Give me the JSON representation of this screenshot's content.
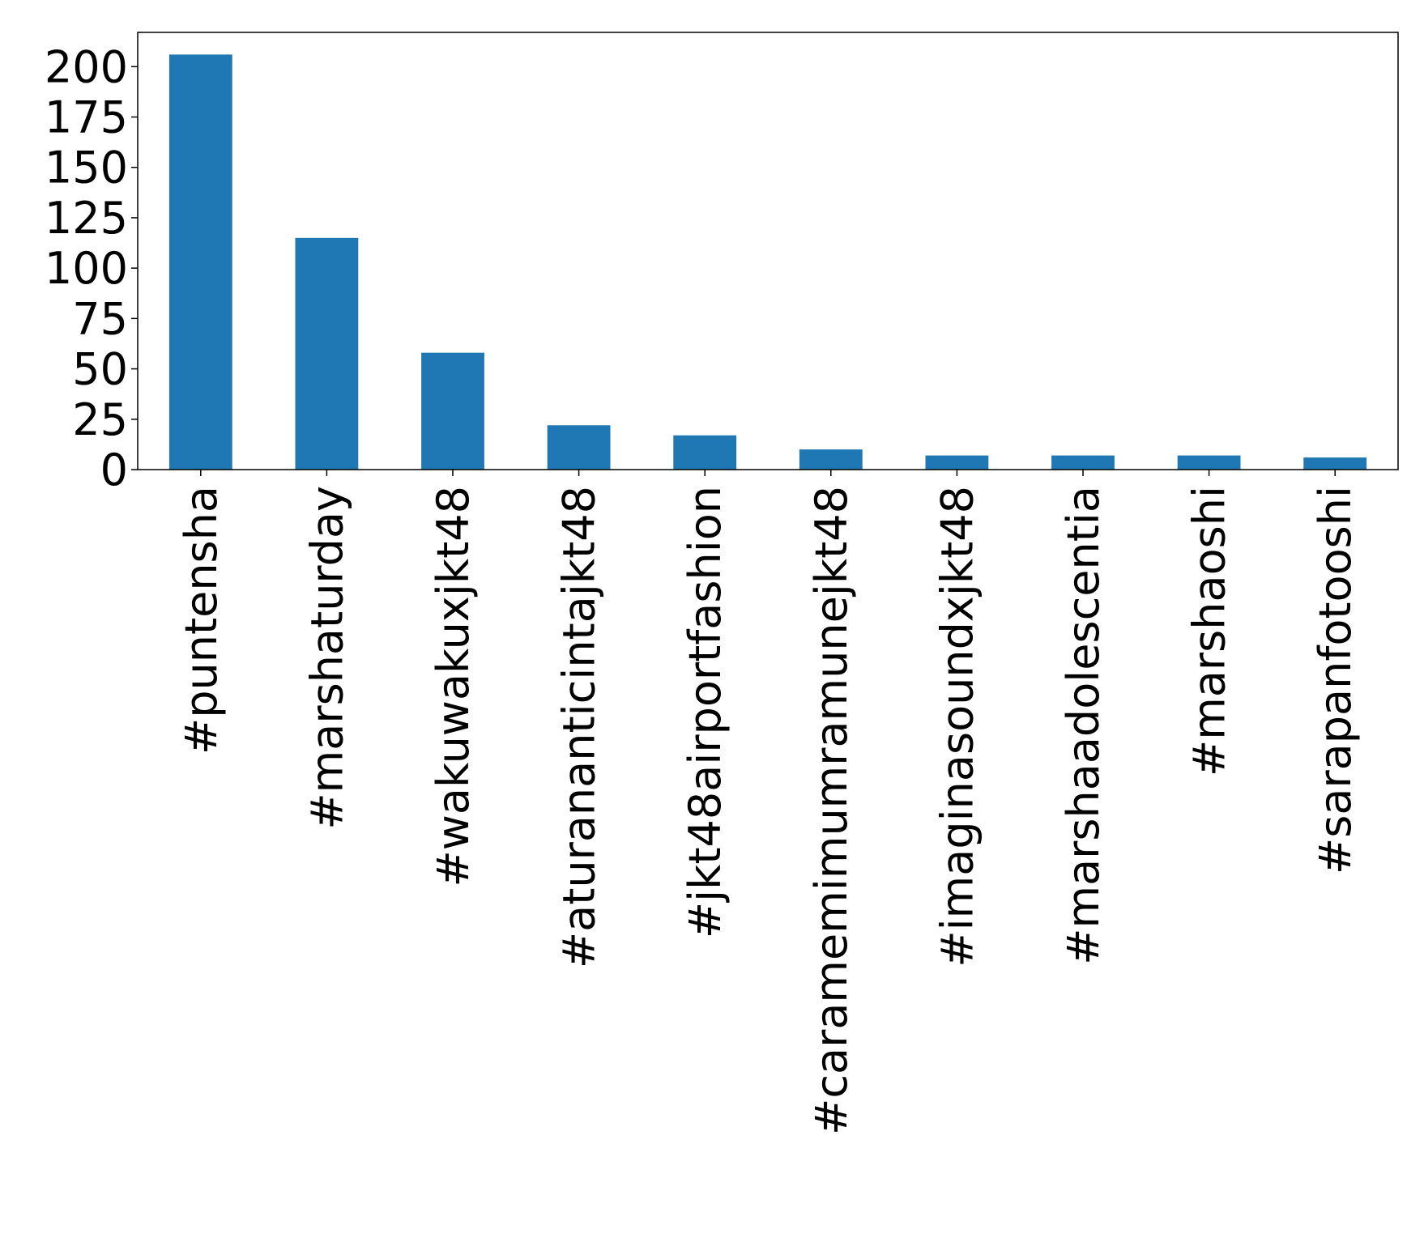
{
  "chart_data": {
    "type": "bar",
    "title": "",
    "xlabel": "",
    "ylabel": "",
    "categories": [
      "#puntensha",
      "#marshaturday",
      "#wakuwakuxjkt48",
      "#aturananticintajkt48",
      "#jkt48airportfashion",
      "#caramemimumramunejkt48",
      "#imaginasoundxjkt48",
      "#marshaadolescentia",
      "#marshaoshi",
      "#sarapanfotooshi"
    ],
    "values": [
      206,
      115,
      58,
      22,
      17,
      10,
      7,
      7,
      7,
      6
    ],
    "ylim": [
      0,
      217
    ],
    "yticks": [
      0,
      25,
      50,
      75,
      100,
      125,
      150,
      175,
      200
    ],
    "grid": false,
    "legend": "none",
    "colors": {
      "bar": "#1f77b4",
      "axis": "#000000",
      "background": "#ffffff"
    }
  }
}
